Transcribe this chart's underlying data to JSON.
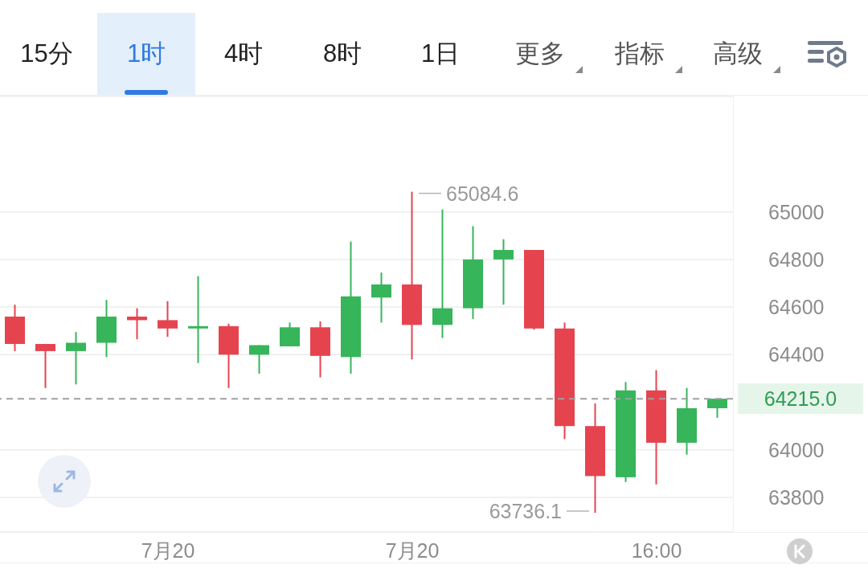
{
  "chart_data": {
    "type": "candlestick",
    "categories": [
      null,
      null,
      null,
      null,
      null,
      "7月20",
      null,
      null,
      null,
      null,
      null,
      null,
      null,
      "7月20",
      null,
      null,
      null,
      null,
      null,
      null,
      null,
      "16:00",
      null,
      null
    ],
    "ohlc": [
      [
        64560,
        64610,
        64415,
        64445
      ],
      [
        64445,
        64445,
        64260,
        64415
      ],
      [
        64415,
        64495,
        64275,
        64450
      ],
      [
        64450,
        64630,
        64390,
        64560
      ],
      [
        64560,
        64595,
        64465,
        64545
      ],
      [
        64545,
        64625,
        64475,
        64510
      ],
      [
        64510,
        64730,
        64365,
        64520
      ],
      [
        64520,
        64530,
        64260,
        64400
      ],
      [
        64400,
        64440,
        64320,
        64440
      ],
      [
        64435,
        64535,
        64435,
        64515
      ],
      [
        64515,
        64540,
        64305,
        64395
      ],
      [
        64390,
        64875,
        64320,
        64645
      ],
      [
        64640,
        64745,
        64535,
        64695
      ],
      [
        64695,
        65084.6,
        64380,
        64525
      ],
      [
        64525,
        65010,
        64470,
        64595
      ],
      [
        64595,
        64940,
        64550,
        64800
      ],
      [
        64800,
        64885,
        64610,
        64840
      ],
      [
        64840,
        64840,
        64505,
        64510
      ],
      [
        64510,
        64535,
        64045,
        64100
      ],
      [
        64100,
        64195,
        63736.1,
        63890
      ],
      [
        63885,
        64285,
        63865,
        64250
      ],
      [
        64250,
        64335,
        63855,
        64030
      ],
      [
        64030,
        64260,
        63980,
        64175
      ],
      [
        64175,
        64215,
        64135,
        64215
      ]
    ],
    "colors": [
      "#e5444f",
      "#e5444f",
      "#37b55a",
      "#37b55a",
      "#e5444f",
      "#e5444f",
      "#37b55a",
      "#e5444f",
      "#37b55a",
      "#37b55a",
      "#e5444f",
      "#37b55a",
      "#37b55a",
      "#e5444f",
      "#37b55a",
      "#37b55a",
      "#37b55a",
      "#e5444f",
      "#e5444f",
      "#e5444f",
      "#37b55a",
      "#e5444f",
      "#37b55a",
      "#37b55a"
    ],
    "ylim": [
      63655,
      65485
    ],
    "yticks": [
      63800,
      64000,
      64400,
      64600,
      64800,
      65000
    ],
    "grid": "y",
    "ref_lines": [
      {
        "axis": "y",
        "value": 64215.0,
        "label": "64215.0",
        "color": "#a0a0a0",
        "line_style": "dashed"
      }
    ],
    "annotations": [
      "15分",
      "1时",
      "4时",
      "8时",
      "1日",
      "更多",
      "指标",
      "高级",
      "65084.6",
      "63736.1"
    ]
  }
}
